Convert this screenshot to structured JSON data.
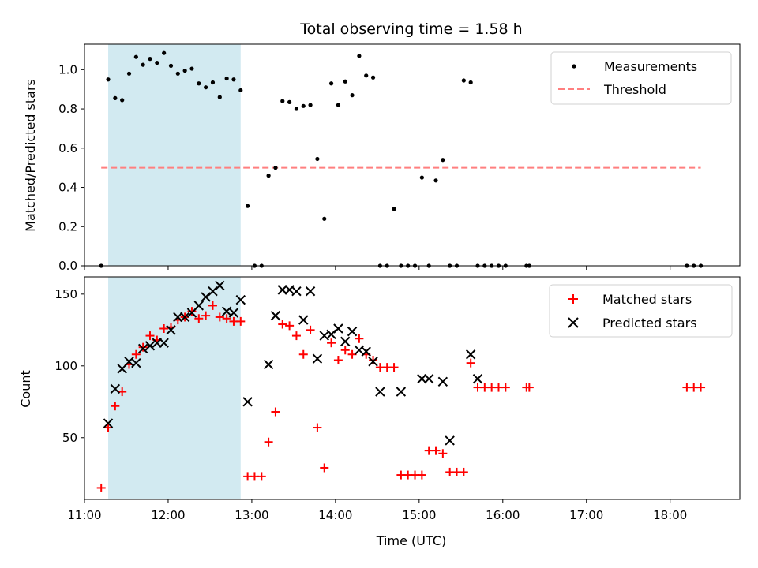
{
  "chart_data": [
    {
      "type": "scatter",
      "title": "Total observing time = 1.58 h",
      "xlabel": "",
      "ylabel": "Matched/Predicted stars",
      "xlim": [
        "11:00",
        "18:50"
      ],
      "ylim": [
        0,
        1.13
      ],
      "yticks": [
        0.0,
        0.2,
        0.4,
        0.6,
        0.8,
        1.0
      ],
      "ytick_labels": [
        "0.0",
        "0.2",
        "0.4",
        "0.6",
        "0.8",
        "1.0"
      ],
      "shaded_span": [
        "11:17",
        "12:52"
      ],
      "shade_color": "#add8e6",
      "threshold": {
        "label": "Threshold",
        "value": 0.5,
        "x_range": [
          "11:12",
          "18:22"
        ],
        "color": "#ff7f7f"
      },
      "legend": {
        "position": "upper right",
        "entries": [
          "Measurements",
          "Threshold"
        ]
      },
      "series": [
        {
          "name": "Measurements",
          "marker": "dot",
          "color": "#000000",
          "points": [
            [
              "11:12",
              0.0
            ],
            [
              "11:17",
              0.95
            ],
            [
              "11:22",
              0.855
            ],
            [
              "11:27",
              0.845
            ],
            [
              "11:32",
              0.98
            ],
            [
              "11:37",
              1.065
            ],
            [
              "11:42",
              1.025
            ],
            [
              "11:47",
              1.055
            ],
            [
              "11:52",
              1.035
            ],
            [
              "11:57",
              1.085
            ],
            [
              "12:02",
              1.02
            ],
            [
              "12:07",
              0.98
            ],
            [
              "12:12",
              0.995
            ],
            [
              "12:17",
              1.005
            ],
            [
              "12:22",
              0.93
            ],
            [
              "12:27",
              0.91
            ],
            [
              "12:32",
              0.935
            ],
            [
              "12:37",
              0.86
            ],
            [
              "12:42",
              0.955
            ],
            [
              "12:47",
              0.95
            ],
            [
              "12:52",
              0.895
            ],
            [
              "12:57",
              0.305
            ],
            [
              "13:02",
              0.0
            ],
            [
              "13:07",
              0.0
            ],
            [
              "13:12",
              0.46
            ],
            [
              "13:17",
              0.5
            ],
            [
              "13:22",
              0.84
            ],
            [
              "13:27",
              0.835
            ],
            [
              "13:32",
              0.8
            ],
            [
              "13:37",
              0.815
            ],
            [
              "13:42",
              0.82
            ],
            [
              "13:47",
              0.545
            ],
            [
              "13:52",
              0.24
            ],
            [
              "13:57",
              0.93
            ],
            [
              "14:02",
              0.82
            ],
            [
              "14:07",
              0.94
            ],
            [
              "14:12",
              0.87
            ],
            [
              "14:17",
              1.07
            ],
            [
              "14:22",
              0.97
            ],
            [
              "14:27",
              0.96
            ],
            [
              "14:32",
              0.0
            ],
            [
              "14:37",
              0.0
            ],
            [
              "14:42",
              0.29
            ],
            [
              "14:47",
              0.0
            ],
            [
              "14:52",
              0.0
            ],
            [
              "14:57",
              0.0
            ],
            [
              "15:02",
              0.45
            ],
            [
              "15:07",
              0.0
            ],
            [
              "15:12",
              0.435
            ],
            [
              "15:17",
              0.54
            ],
            [
              "15:22",
              0.0
            ],
            [
              "15:27",
              0.0
            ],
            [
              "15:32",
              0.945
            ],
            [
              "15:37",
              0.935
            ],
            [
              "15:42",
              0.0
            ],
            [
              "15:47",
              0.0
            ],
            [
              "15:52",
              0.0
            ],
            [
              "15:57",
              0.0
            ],
            [
              "16:02",
              0.0
            ],
            [
              "16:17",
              0.0
            ],
            [
              "16:19",
              0.0
            ],
            [
              "18:12",
              0.0
            ],
            [
              "18:17",
              0.0
            ],
            [
              "18:22",
              0.0
            ]
          ]
        }
      ]
    },
    {
      "type": "scatter",
      "title": "",
      "xlabel": "Time (UTC)",
      "ylabel": "Count",
      "xlim": [
        "11:00",
        "18:50"
      ],
      "ylim": [
        7,
        162
      ],
      "yticks": [
        50,
        100,
        150
      ],
      "ytick_labels": [
        "50",
        "100",
        "150"
      ],
      "xticks": [
        "11:00",
        "12:00",
        "13:00",
        "14:00",
        "15:00",
        "16:00",
        "17:00",
        "18:00"
      ],
      "xtick_labels": [
        "11:00",
        "12:00",
        "13:00",
        "14:00",
        "15:00",
        "16:00",
        "17:00",
        "18:00"
      ],
      "shaded_span": [
        "11:17",
        "12:52"
      ],
      "shade_color": "#add8e6",
      "legend": {
        "position": "upper right",
        "entries": [
          "Matched stars",
          "Predicted stars"
        ]
      },
      "series": [
        {
          "name": "Matched stars",
          "marker": "plus",
          "color": "#ff0000",
          "points": [
            [
              "11:12",
              15
            ],
            [
              "11:17",
              57
            ],
            [
              "11:22",
              72
            ],
            [
              "11:27",
              82
            ],
            [
              "11:32",
              101
            ],
            [
              "11:37",
              108
            ],
            [
              "11:42",
              113
            ],
            [
              "11:47",
              121
            ],
            [
              "11:52",
              118
            ],
            [
              "11:57",
              126
            ],
            [
              "12:02",
              127
            ],
            [
              "12:07",
              132
            ],
            [
              "12:12",
              134
            ],
            [
              "12:17",
              138
            ],
            [
              "12:22",
              133
            ],
            [
              "12:27",
              135
            ],
            [
              "12:32",
              142
            ],
            [
              "12:37",
              134
            ],
            [
              "12:42",
              133
            ],
            [
              "12:47",
              131
            ],
            [
              "12:52",
              131
            ],
            [
              "12:57",
              23
            ],
            [
              "13:02",
              23
            ],
            [
              "13:07",
              23
            ],
            [
              "13:12",
              47
            ],
            [
              "13:17",
              68
            ],
            [
              "13:22",
              129
            ],
            [
              "13:27",
              128
            ],
            [
              "13:32",
              121
            ],
            [
              "13:37",
              108
            ],
            [
              "13:42",
              125
            ],
            [
              "13:47",
              57
            ],
            [
              "13:52",
              29
            ],
            [
              "13:57",
              116
            ],
            [
              "14:02",
              104
            ],
            [
              "14:07",
              111
            ],
            [
              "14:12",
              108
            ],
            [
              "14:17",
              119
            ],
            [
              "14:22",
              108
            ],
            [
              "14:27",
              104
            ],
            [
              "14:32",
              99
            ],
            [
              "14:37",
              99
            ],
            [
              "14:42",
              99
            ],
            [
              "14:47",
              24
            ],
            [
              "14:52",
              24
            ],
            [
              "14:57",
              24
            ],
            [
              "15:02",
              24
            ],
            [
              "15:07",
              41
            ],
            [
              "15:12",
              41
            ],
            [
              "15:17",
              39
            ],
            [
              "15:22",
              26
            ],
            [
              "15:27",
              26
            ],
            [
              "15:32",
              26
            ],
            [
              "15:37",
              102
            ],
            [
              "15:42",
              85
            ],
            [
              "15:47",
              85
            ],
            [
              "15:52",
              85
            ],
            [
              "15:57",
              85
            ],
            [
              "16:02",
              85
            ],
            [
              "16:17",
              85
            ],
            [
              "16:19",
              85
            ],
            [
              "18:12",
              85
            ],
            [
              "18:17",
              85
            ],
            [
              "18:22",
              85
            ]
          ]
        },
        {
          "name": "Predicted stars",
          "marker": "x",
          "color": "#000000",
          "points": [
            [
              "11:17",
              60
            ],
            [
              "11:22",
              84
            ],
            [
              "11:27",
              98
            ],
            [
              "11:32",
              103
            ],
            [
              "11:37",
              102
            ],
            [
              "11:42",
              112
            ],
            [
              "11:47",
              114
            ],
            [
              "11:52",
              116
            ],
            [
              "11:57",
              116
            ],
            [
              "12:02",
              125
            ],
            [
              "12:07",
              134
            ],
            [
              "12:12",
              134
            ],
            [
              "12:17",
              137
            ],
            [
              "12:22",
              142
            ],
            [
              "12:27",
              148
            ],
            [
              "12:32",
              152
            ],
            [
              "12:37",
              156
            ],
            [
              "12:42",
              138
            ],
            [
              "12:47",
              137
            ],
            [
              "12:52",
              146
            ],
            [
              "12:57",
              75
            ],
            [
              "13:12",
              101
            ],
            [
              "13:17",
              135
            ],
            [
              "13:22",
              153
            ],
            [
              "13:27",
              153
            ],
            [
              "13:32",
              152
            ],
            [
              "13:37",
              132
            ],
            [
              "13:42",
              152
            ],
            [
              "13:47",
              105
            ],
            [
              "13:52",
              121
            ],
            [
              "13:57",
              122
            ],
            [
              "14:02",
              126
            ],
            [
              "14:07",
              117
            ],
            [
              "14:12",
              124
            ],
            [
              "14:17",
              111
            ],
            [
              "14:22",
              110
            ],
            [
              "14:27",
              103
            ],
            [
              "14:32",
              82
            ],
            [
              "14:47",
              82
            ],
            [
              "15:02",
              91
            ],
            [
              "15:07",
              91
            ],
            [
              "15:17",
              89
            ],
            [
              "15:22",
              48
            ],
            [
              "15:37",
              108
            ],
            [
              "15:42",
              91
            ]
          ]
        }
      ]
    }
  ]
}
